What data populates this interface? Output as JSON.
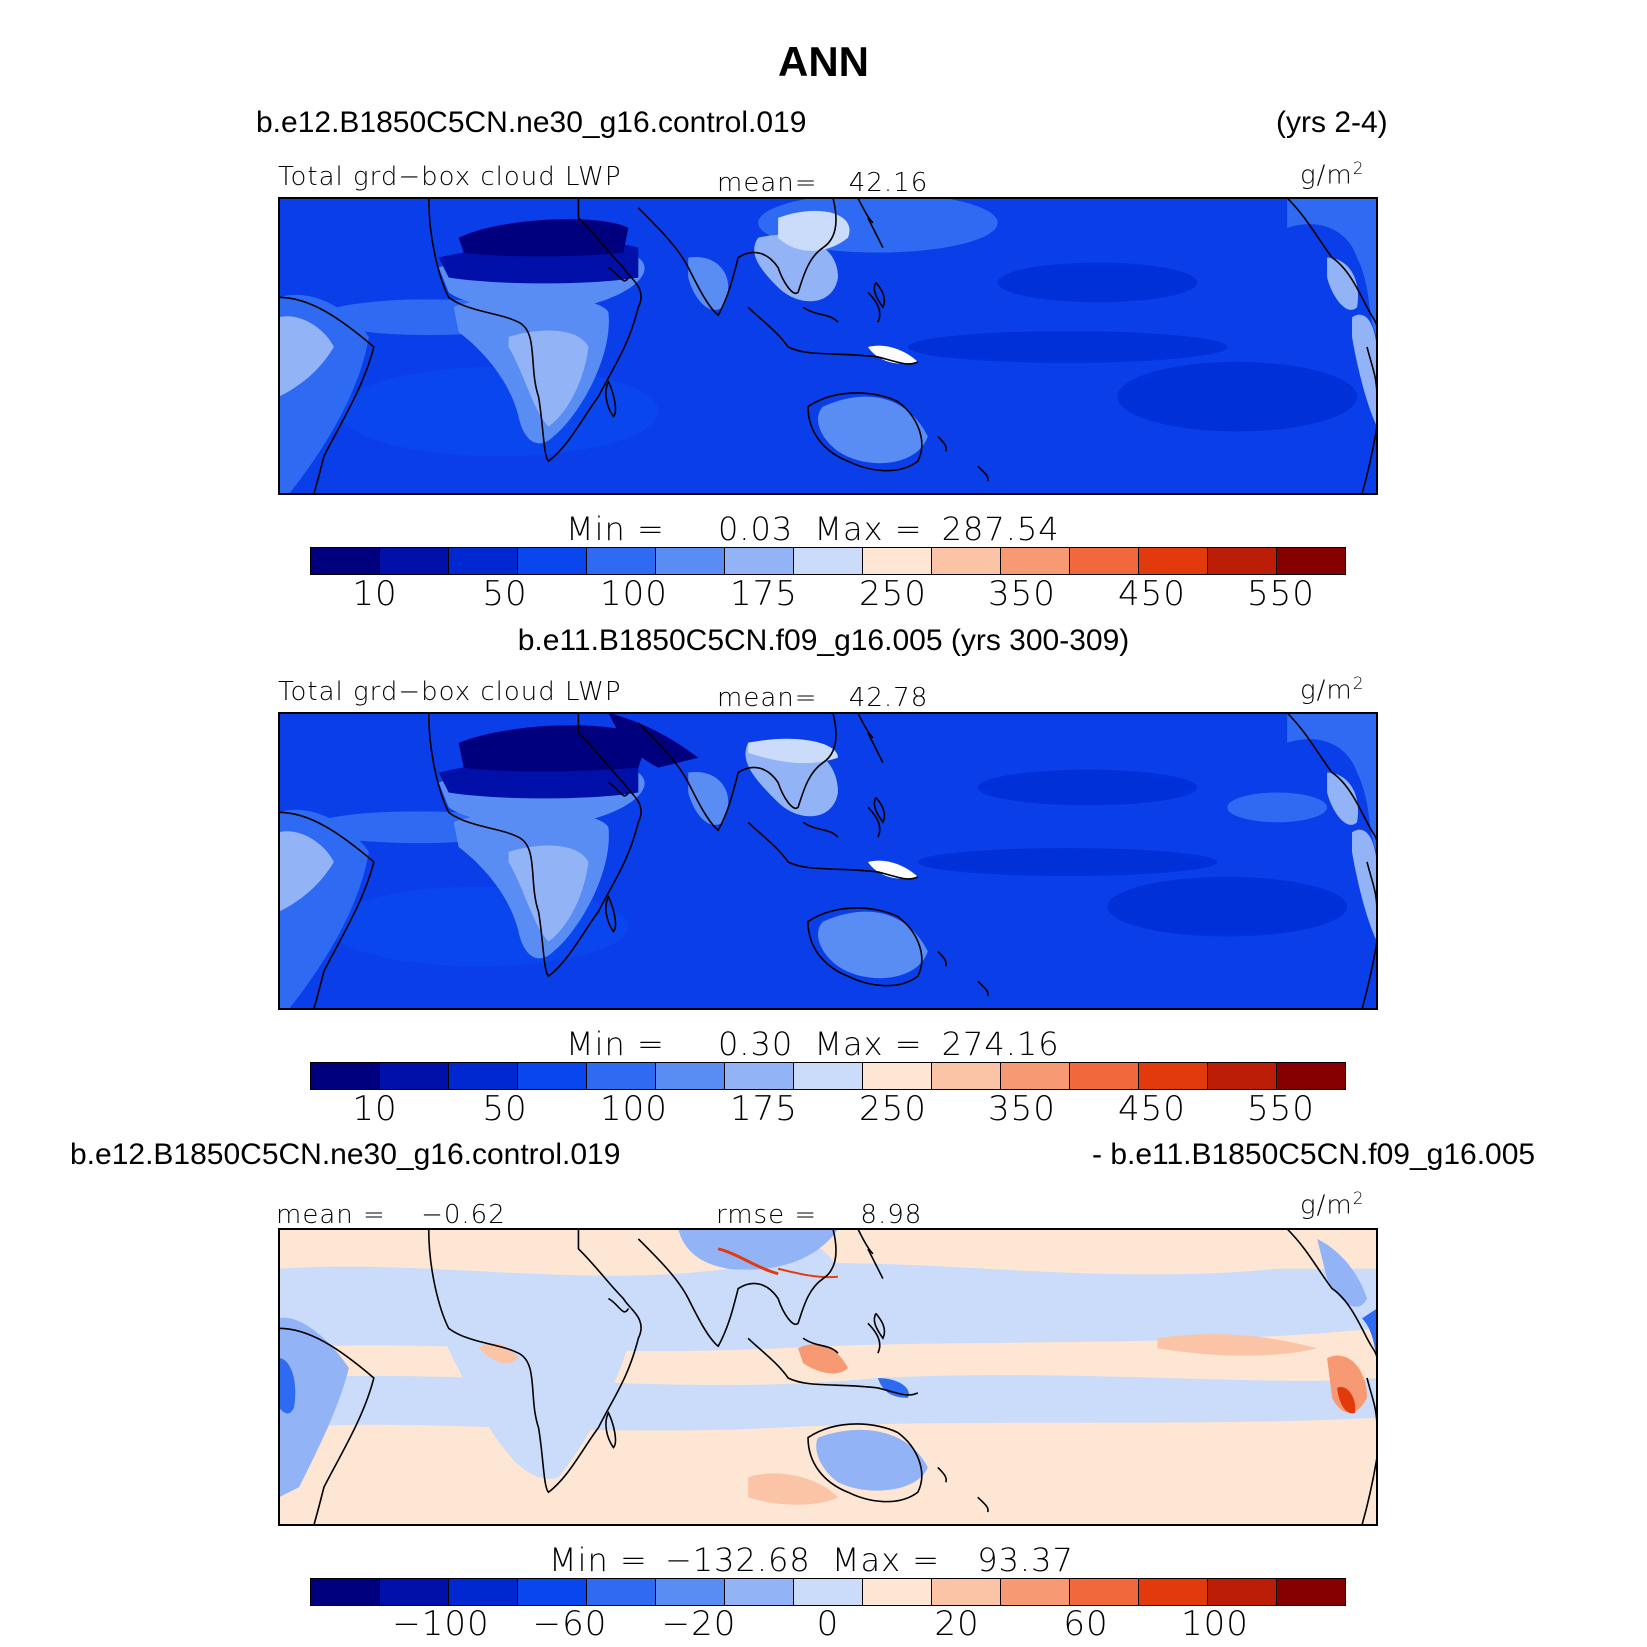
{
  "title": "ANN",
  "palette": [
    "#00007f",
    "#0010a8",
    "#0028d0",
    "#0a46ee",
    "#2e6af2",
    "#5a8df4",
    "#93b3f7",
    "#cadcf9",
    "#fde6d3",
    "#fbc4a7",
    "#f79a74",
    "#f2683d",
    "#e23a0d",
    "#bb1d06",
    "#870000"
  ],
  "panel1": {
    "case": "b.e12.B1850C5CN.ne30_g16.control.019",
    "years": "(yrs 2-4)",
    "variable": "Total grd−box cloud LWP",
    "mean_label": "mean=",
    "mean_value": "42.16",
    "units_base": "g/m",
    "units_exp": "2",
    "min_label": "Min =",
    "min_value": "0.03",
    "max_label": "Max =",
    "max_value": "287.54",
    "cbar_ticks": [
      "10",
      "50",
      "100",
      "175",
      "250",
      "350",
      "450",
      "550"
    ]
  },
  "panel2": {
    "case": "b.e11.B1850C5CN.f09_g16.005 (yrs 300-309)",
    "variable": "Total grd−box cloud LWP",
    "mean_label": "mean=",
    "mean_value": "42.78",
    "units_base": "g/m",
    "units_exp": "2",
    "min_label": "Min =",
    "min_value": "0.30",
    "max_label": "Max =",
    "max_value": "274.16",
    "cbar_ticks": [
      "10",
      "50",
      "100",
      "175",
      "250",
      "350",
      "450",
      "550"
    ]
  },
  "panel3": {
    "case_left": "b.e12.B1850C5CN.ne30_g16.control.019",
    "case_right": "- b.e11.B1850C5CN.f09_g16.005",
    "mean_label": "mean =",
    "mean_value": "−0.62",
    "rmse_label": "rmse =",
    "rmse_value": "8.98",
    "units_base": "g/m",
    "units_exp": "2",
    "min_label": "Min =",
    "min_value": "−132.68",
    "max_label": "Max =",
    "max_value": "93.37",
    "cbar_ticks": [
      "−100",
      "−60",
      "−20",
      "0",
      "20",
      "60",
      "100"
    ]
  }
}
